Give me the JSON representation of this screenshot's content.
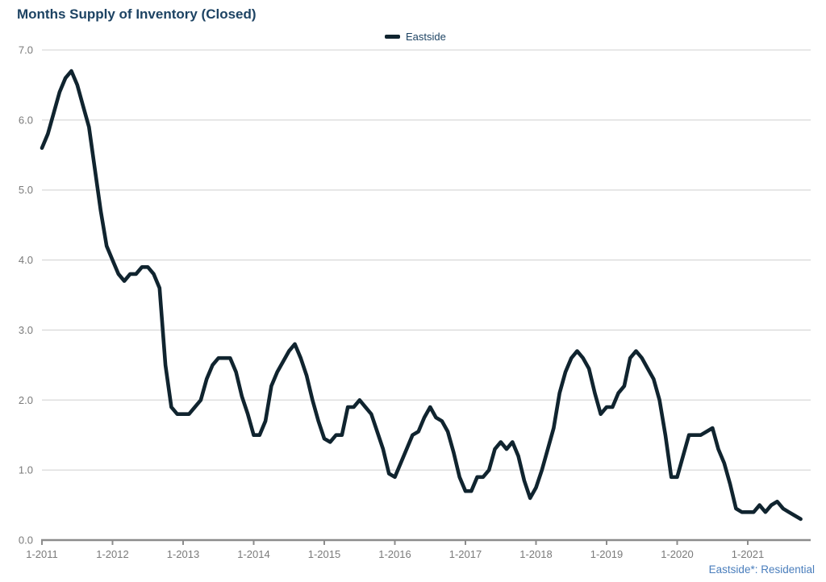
{
  "header": {
    "title": "Months Supply of Inventory (Closed)"
  },
  "legend": {
    "label": "Eastside"
  },
  "footer": {
    "note": "Eastside*: Residential"
  },
  "chart_data": {
    "type": "line",
    "title": "Months Supply of Inventory (Closed)",
    "xlabel": "",
    "ylabel": "",
    "ylim": [
      0,
      7
    ],
    "ytick_step": 1,
    "ytick_labels": [
      "7.0",
      "6.0",
      "5.0",
      "4.0",
      "3.0",
      "2.0",
      "1.0",
      "0.0"
    ],
    "x_tick_labels": [
      "1-2011",
      "1-2012",
      "1-2013",
      "1-2014",
      "1-2015",
      "1-2016",
      "1-2017",
      "1-2018",
      "1-2019",
      "1-2020",
      "1-2021"
    ],
    "x_resolution": "monthly",
    "x_range": "1-2011 to 10-2021",
    "grid": "horizontal-only",
    "legend_position": "top-center",
    "background_color": "#ffffff",
    "axis_text_color": "#7a7a7a",
    "axis_line_color": "#8c8c8c",
    "grid_color": "#d9d9d9",
    "title_color": "#1d4363",
    "footnote_color": "#4a7ebc",
    "series": [
      {
        "name": "Eastside",
        "color": "#10242f",
        "start_month": "1-2011",
        "values": [
          5.6,
          5.8,
          6.1,
          6.4,
          6.6,
          6.7,
          6.5,
          6.2,
          5.9,
          5.3,
          4.7,
          4.2,
          4.0,
          3.8,
          3.7,
          3.8,
          3.8,
          3.9,
          3.9,
          3.8,
          3.6,
          2.5,
          1.9,
          1.8,
          1.8,
          1.8,
          1.9,
          2.0,
          2.3,
          2.5,
          2.6,
          2.6,
          2.6,
          2.4,
          2.05,
          1.8,
          1.5,
          1.5,
          1.7,
          2.2,
          2.4,
          2.55,
          2.7,
          2.8,
          2.6,
          2.35,
          2.0,
          1.7,
          1.45,
          1.4,
          1.5,
          1.5,
          1.9,
          1.9,
          2.0,
          1.9,
          1.8,
          1.55,
          1.3,
          0.95,
          0.9,
          1.1,
          1.3,
          1.5,
          1.55,
          1.75,
          1.9,
          1.75,
          1.7,
          1.55,
          1.25,
          0.9,
          0.7,
          0.7,
          0.9,
          0.9,
          1.0,
          1.3,
          1.4,
          1.3,
          1.4,
          1.2,
          0.85,
          0.6,
          0.75,
          1.0,
          1.3,
          1.6,
          2.1,
          2.4,
          2.6,
          2.7,
          2.6,
          2.45,
          2.1,
          1.8,
          1.9,
          1.9,
          2.1,
          2.2,
          2.6,
          2.7,
          2.6,
          2.45,
          2.3,
          2.0,
          1.5,
          0.9,
          0.9,
          1.2,
          1.5,
          1.5,
          1.5,
          1.55,
          1.6,
          1.3,
          1.1,
          0.8,
          0.45,
          0.4,
          0.4,
          0.4,
          0.5,
          0.4,
          0.5,
          0.55,
          0.45,
          0.4,
          0.35,
          0.3
        ]
      }
    ]
  }
}
